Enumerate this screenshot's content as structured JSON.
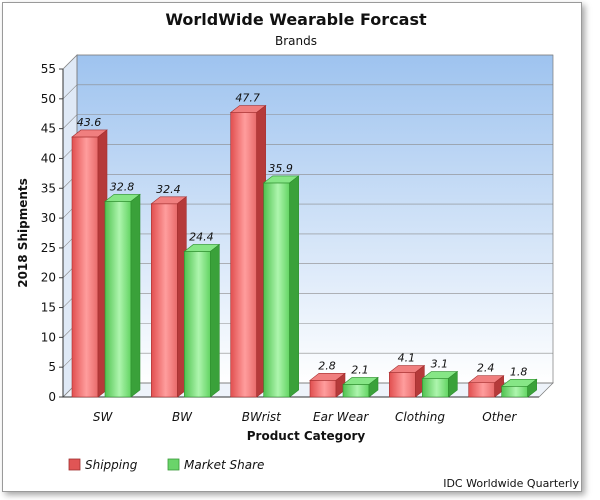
{
  "chart_data": {
    "type": "bar",
    "title": "WorldWide Wearable Forcast",
    "subtitle": "Brands",
    "xlabel": "Product Category",
    "ylabel": "2018 Shipments",
    "categories": [
      "SW",
      "BW",
      "BWrist",
      "Ear Wear",
      "Clothing",
      "Other"
    ],
    "series": [
      {
        "name": "Shipping",
        "values": [
          43.6,
          32.4,
          47.7,
          2.8,
          4.1,
          2.4
        ],
        "color": "#e05555"
      },
      {
        "name": "Market Share",
        "values": [
          32.8,
          24.4,
          35.9,
          2.1,
          3.1,
          1.8
        ],
        "color": "#5ecf5e"
      }
    ],
    "ylim": [
      0,
      55
    ],
    "yticks": [
      0,
      5,
      10,
      15,
      20,
      25,
      30,
      35,
      40,
      45,
      50,
      55
    ],
    "grid": true,
    "legend_position": "bottom-left",
    "source": "IDC Worldwide Quarterly"
  }
}
